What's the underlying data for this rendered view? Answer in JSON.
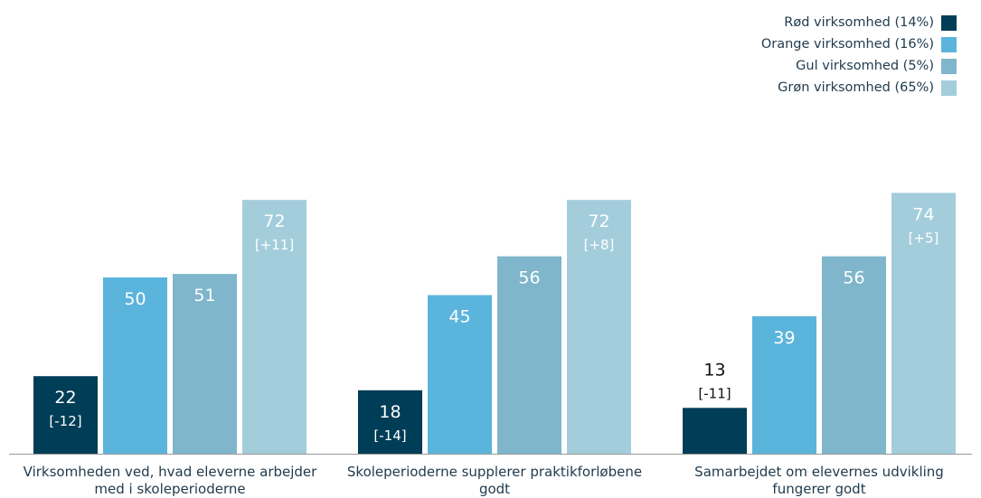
{
  "chart_data": {
    "type": "bar",
    "title": "",
    "xlabel": "",
    "ylabel": "",
    "ylim": [
      0,
      100
    ],
    "grid": false,
    "legend_position": "top-right",
    "categories": [
      "Virksomheden ved, hvad eleverne arbejder med i skoleperioderne",
      "Skoleperioderne supplerer praktikforløbene godt",
      "Samarbejdet om elevernes udvikling fungerer godt"
    ],
    "category_lines": [
      [
        "Virksomheden ved, hvad eleverne arbejder",
        "med i skoleperioderne"
      ],
      [
        "Skoleperioderne supplerer praktikforløbene",
        "godt"
      ],
      [
        "Samarbejdet om elevernes udvikling",
        "fungerer godt"
      ]
    ],
    "series": [
      {
        "name": "Rød virksomhed (14%)",
        "color": "#003d56",
        "values": [
          22,
          18,
          13
        ],
        "diffs": [
          "[-12]",
          "[-14]",
          "[-11]"
        ]
      },
      {
        "name": "Orange virksomhed (16%)",
        "color": "#5bb4db",
        "values": [
          50,
          45,
          39
        ],
        "diffs": [
          "",
          "",
          ""
        ]
      },
      {
        "name": "Gul virksomhed (5%)",
        "color": "#7fb6cb",
        "values": [
          51,
          56,
          56
        ],
        "diffs": [
          "",
          "",
          ""
        ]
      },
      {
        "name": "Grøn virksomhed (65%)",
        "color": "#a3cddb",
        "values": [
          72,
          72,
          74
        ],
        "diffs": [
          "[+11]",
          "[+8]",
          "[+5]"
        ]
      }
    ]
  }
}
